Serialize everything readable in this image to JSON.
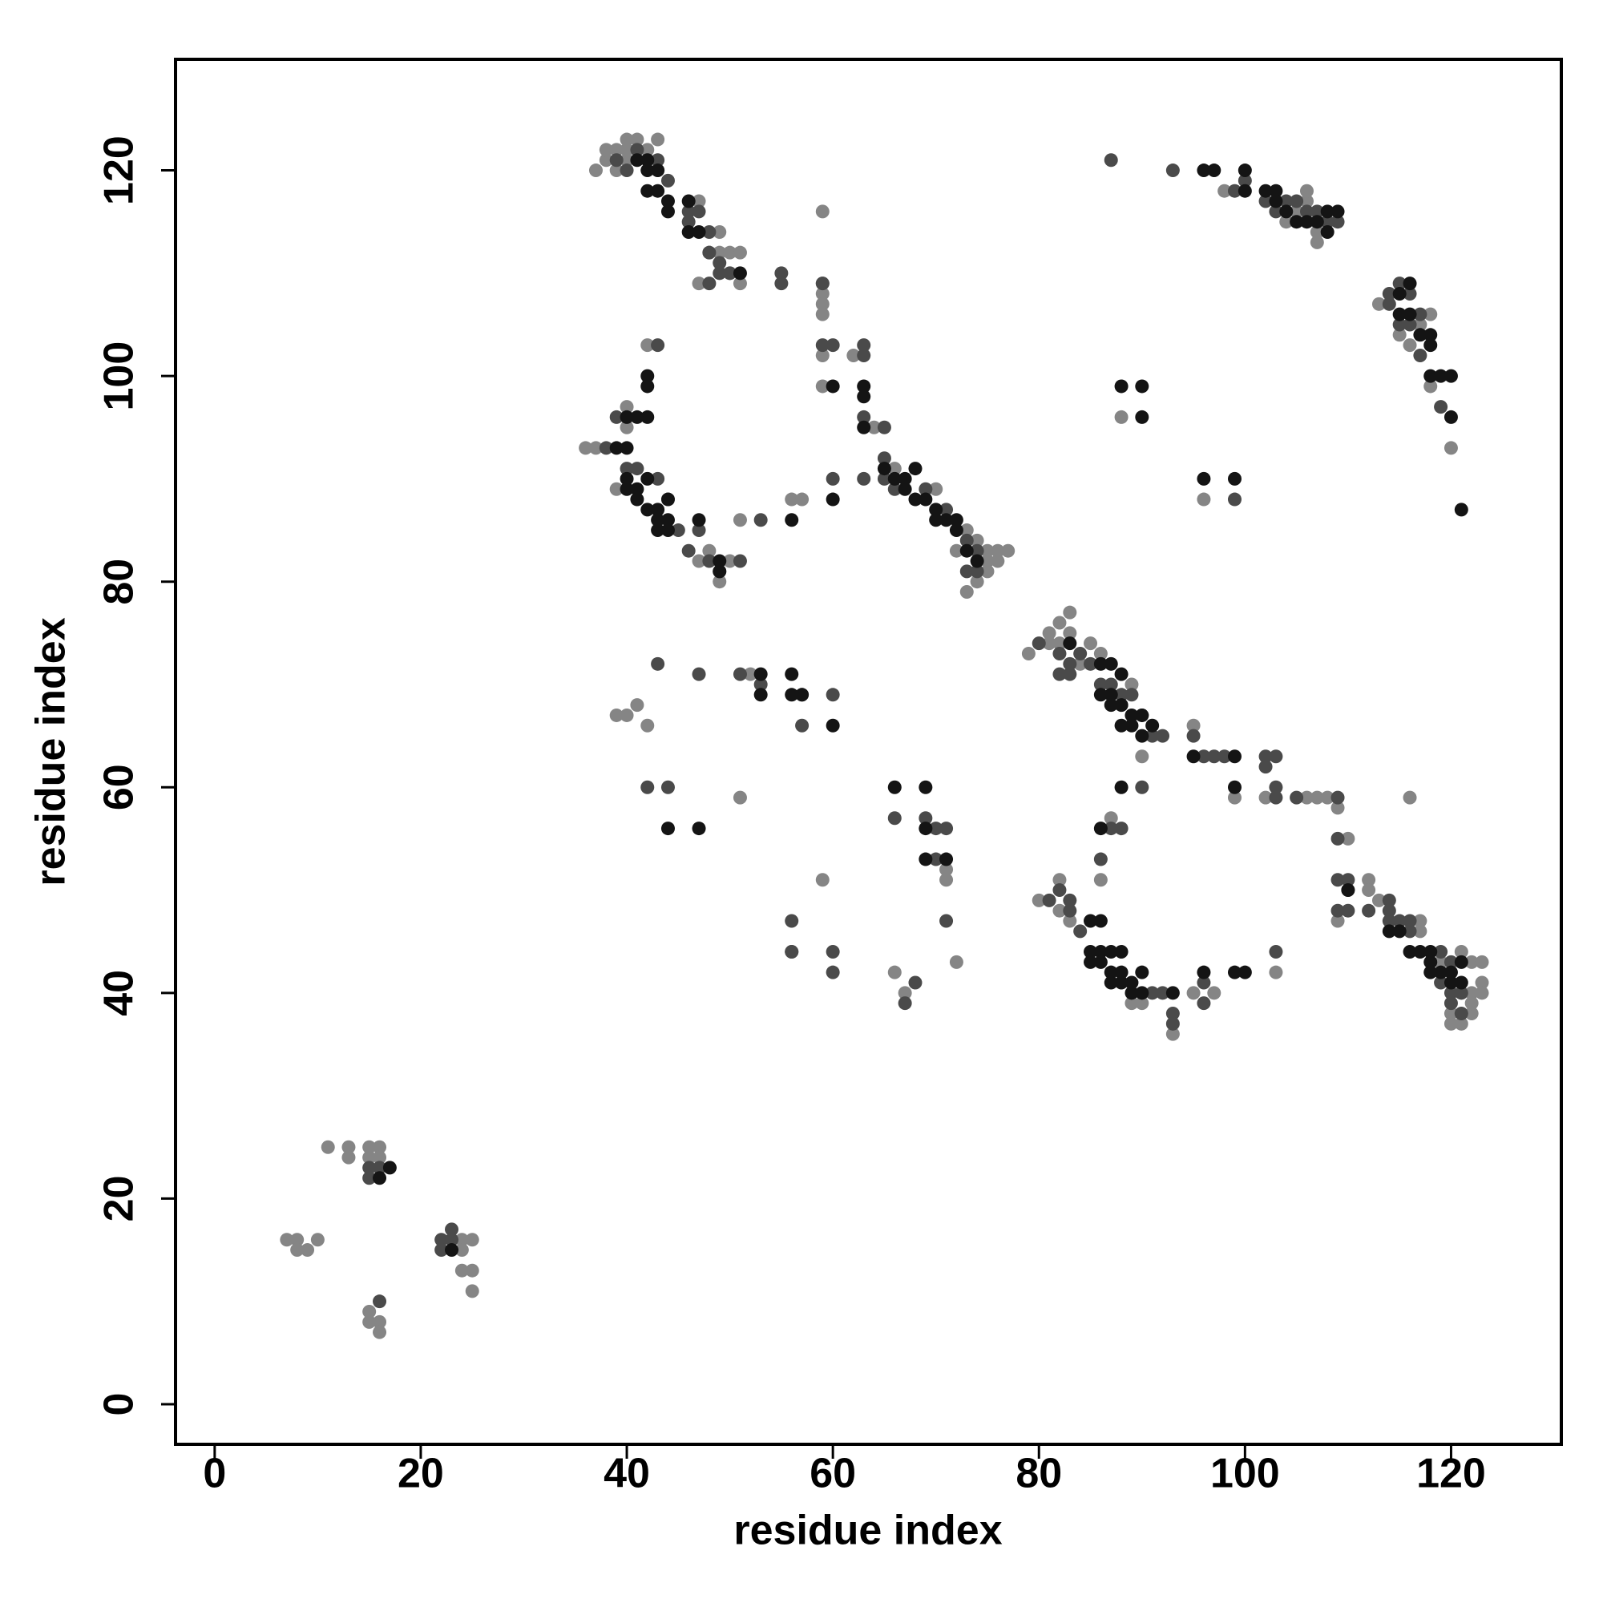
{
  "chart_data": {
    "type": "scatter",
    "xlabel": "residue index",
    "ylabel": "residue index",
    "xlim": [
      -3.8,
      130.7
    ],
    "ylim": [
      -3.9,
      130.8
    ],
    "xticks": [
      0,
      20,
      40,
      60,
      80,
      100,
      120
    ],
    "yticks": [
      0,
      20,
      40,
      60,
      80,
      100,
      120
    ],
    "series": [
      {
        "color": "#858585",
        "x": [
          7,
          8,
          8,
          9,
          10,
          11,
          13,
          13,
          15,
          15,
          16,
          16,
          15,
          15,
          16,
          16,
          24,
          25,
          24,
          24,
          25,
          25,
          37,
          38,
          38,
          39,
          39,
          40,
          40,
          41,
          43,
          42,
          40,
          47,
          48,
          49,
          50,
          51,
          49,
          47,
          50,
          51,
          43,
          36,
          37,
          39,
          40,
          40,
          42,
          47,
          48,
          49,
          50,
          51,
          44,
          56,
          57,
          59,
          59,
          59,
          59,
          59,
          59,
          59,
          62,
          64,
          66,
          70,
          73,
          74,
          75,
          76,
          77,
          75,
          76,
          73,
          74,
          75,
          72,
          79,
          81,
          82,
          83,
          83,
          82,
          81,
          85,
          86,
          89,
          88,
          90,
          84,
          80,
          82,
          82,
          83,
          86,
          87,
          89,
          90,
          93,
          95,
          97,
          103,
          95,
          99,
          102,
          106,
          107,
          108,
          109,
          110,
          109,
          112,
          112,
          113,
          116,
          117,
          117,
          121,
          122,
          123,
          123,
          122,
          123,
          122,
          121,
          120,
          120,
          122,
          119,
          98,
          104,
          105,
          106,
          106,
          107,
          108,
          113,
          115,
          116,
          117,
          118,
          118,
          120,
          88,
          96,
          107,
          39,
          40,
          41,
          42,
          51,
          52,
          59,
          66,
          67,
          71,
          71,
          72
        ],
        "y": [
          16,
          16,
          15,
          15,
          16,
          25,
          25,
          24,
          25,
          24,
          25,
          24,
          9,
          8,
          8,
          7,
          16,
          16,
          15,
          13,
          13,
          11,
          120,
          121,
          122,
          122,
          120,
          123,
          121,
          123,
          123,
          122,
          122,
          117,
          112,
          112,
          112,
          112,
          114,
          109,
          110,
          109,
          120,
          93,
          93,
          89,
          95,
          97,
          103,
          82,
          83,
          80,
          82,
          86,
          88,
          88,
          88,
          116,
          109,
          108,
          107,
          106,
          102,
          99,
          102,
          95,
          91,
          89,
          85,
          84,
          83,
          83,
          83,
          82,
          82,
          79,
          80,
          81,
          83,
          73,
          75,
          76,
          77,
          75,
          74,
          74,
          74,
          73,
          70,
          68,
          63,
          72,
          49,
          51,
          48,
          47,
          51,
          57,
          39,
          39,
          36,
          40,
          40,
          42,
          66,
          59,
          59,
          59,
          59,
          59,
          58,
          55,
          47,
          51,
          50,
          49,
          59,
          47,
          46,
          44,
          43,
          43,
          41,
          40,
          40,
          38,
          37,
          38,
          37,
          39,
          43,
          118,
          115,
          116,
          117,
          118,
          113,
          115,
          107,
          104,
          103,
          105,
          106,
          99,
          93,
          96,
          88,
          114,
          67,
          67,
          68,
          66,
          59,
          71,
          51,
          42,
          40,
          52,
          51,
          43
        ]
      },
      {
        "color": "#4a4a4a",
        "x": [
          15,
          15,
          16,
          16,
          22,
          22,
          23,
          23,
          39,
          41,
          40,
          43,
          44,
          46,
          47,
          48,
          46,
          48,
          49,
          50,
          48,
          55,
          55,
          49,
          38,
          39,
          41,
          43,
          45,
          46,
          47,
          48,
          49,
          51,
          53,
          43,
          40,
          59,
          59,
          60,
          60,
          63,
          63,
          63,
          63,
          65,
          65,
          65,
          66,
          69,
          71,
          73,
          74,
          73,
          74,
          80,
          82,
          83,
          84,
          85,
          86,
          87,
          88,
          89,
          90,
          91,
          83,
          82,
          92,
          81,
          82,
          83,
          83,
          84,
          86,
          87,
          88,
          91,
          92,
          93,
          93,
          96,
          96,
          90,
          97,
          95,
          96,
          98,
          102,
          102,
          103,
          103,
          103,
          105,
          109,
          109,
          109,
          110,
          109,
          110,
          112,
          110,
          114,
          114,
          103,
          114,
          115,
          116,
          116,
          119,
          120,
          120,
          121,
          120,
          121,
          119,
          87,
          102,
          103,
          104,
          105,
          106,
          107,
          108,
          109,
          114,
          114,
          115,
          116,
          115,
          116,
          117,
          117,
          119,
          99,
          93,
          100,
          99,
          43,
          42,
          44,
          47,
          51,
          53,
          56,
          57,
          57,
          60,
          56,
          56,
          60,
          60,
          67,
          68,
          70,
          70,
          71,
          71,
          69,
          66
        ],
        "y": [
          23,
          22,
          23,
          10,
          16,
          15,
          16,
          17,
          121,
          122,
          120,
          121,
          119,
          116,
          116,
          114,
          115,
          112,
          110,
          110,
          109,
          110,
          109,
          111,
          93,
          96,
          91,
          103,
          85,
          83,
          85,
          82,
          81,
          82,
          86,
          90,
          91,
          109,
          103,
          103,
          90,
          103,
          102,
          96,
          90,
          95,
          92,
          90,
          89,
          89,
          87,
          84,
          83,
          81,
          81,
          74,
          73,
          72,
          73,
          72,
          70,
          70,
          69,
          69,
          67,
          65,
          71,
          71,
          65,
          49,
          50,
          49,
          48,
          46,
          53,
          56,
          56,
          40,
          40,
          38,
          37,
          39,
          41,
          60,
          63,
          65,
          63,
          63,
          63,
          62,
          63,
          60,
          59,
          59,
          59,
          55,
          51,
          51,
          48,
          48,
          48,
          50,
          49,
          48,
          44,
          47,
          47,
          46,
          47,
          44,
          43,
          40,
          40,
          39,
          38,
          41,
          121,
          117,
          116,
          117,
          117,
          116,
          116,
          115,
          115,
          107,
          108,
          109,
          108,
          105,
          105,
          106,
          102,
          97,
          88,
          120,
          119,
          118,
          72,
          60,
          60,
          71,
          71,
          70,
          47,
          66,
          69,
          69,
          44,
          44,
          44,
          42,
          39,
          41,
          53,
          56,
          56,
          47,
          57,
          57
        ]
      },
      {
        "color": "#141414",
        "x": [
          16,
          17,
          23,
          41,
          42,
          42,
          43,
          42,
          43,
          44,
          44,
          46,
          46,
          47,
          51,
          39,
          40,
          40,
          41,
          42,
          42,
          42,
          40,
          40,
          41,
          42,
          41,
          42,
          43,
          43,
          43,
          44,
          44,
          44,
          47,
          49,
          49,
          56,
          60,
          60,
          63,
          63,
          63,
          65,
          66,
          67,
          68,
          67,
          68,
          69,
          70,
          70,
          71,
          72,
          72,
          73,
          74,
          83,
          86,
          87,
          88,
          86,
          87,
          87,
          88,
          89,
          90,
          88,
          89,
          90,
          91,
          85,
          86,
          85,
          86,
          87,
          88,
          85,
          86,
          87,
          88,
          87,
          88,
          89,
          90,
          89,
          90,
          93,
          96,
          99,
          100,
          86,
          88,
          95,
          99,
          99,
          110,
          114,
          115,
          116,
          117,
          118,
          118,
          119,
          120,
          120,
          121,
          121,
          118,
          96,
          97,
          100,
          100,
          102,
          103,
          103,
          104,
          105,
          106,
          107,
          108,
          108,
          109,
          115,
          116,
          115,
          116,
          117,
          118,
          118,
          118,
          119,
          120,
          120,
          90,
          90,
          96,
          99,
          121,
          88,
          44,
          47,
          53,
          53,
          56,
          56,
          57,
          60,
          66,
          69,
          69,
          69,
          71
        ],
        "y": [
          22,
          23,
          15,
          121,
          121,
          120,
          120,
          118,
          118,
          117,
          116,
          117,
          114,
          114,
          110,
          93,
          93,
          96,
          96,
          96,
          100,
          99,
          90,
          89,
          89,
          90,
          88,
          87,
          87,
          86,
          85,
          85,
          88,
          86,
          86,
          82,
          81,
          86,
          99,
          88,
          99,
          98,
          95,
          91,
          90,
          90,
          91,
          89,
          88,
          88,
          87,
          86,
          86,
          86,
          85,
          83,
          82,
          74,
          72,
          72,
          71,
          69,
          69,
          68,
          68,
          67,
          67,
          66,
          66,
          65,
          66,
          47,
          47,
          44,
          44,
          44,
          44,
          43,
          43,
          42,
          42,
          41,
          41,
          41,
          42,
          40,
          40,
          40,
          42,
          42,
          42,
          56,
          60,
          63,
          63,
          60,
          50,
          46,
          46,
          44,
          44,
          44,
          43,
          42,
          42,
          41,
          41,
          43,
          42,
          120,
          120,
          120,
          118,
          118,
          118,
          117,
          116,
          115,
          115,
          115,
          114,
          116,
          116,
          108,
          109,
          106,
          106,
          104,
          104,
          103,
          100,
          100,
          100,
          96,
          99,
          96,
          90,
          90,
          87,
          99,
          56,
          56,
          71,
          69,
          71,
          69,
          69,
          66,
          60,
          60,
          56,
          53,
          53
        ]
      }
    ]
  }
}
